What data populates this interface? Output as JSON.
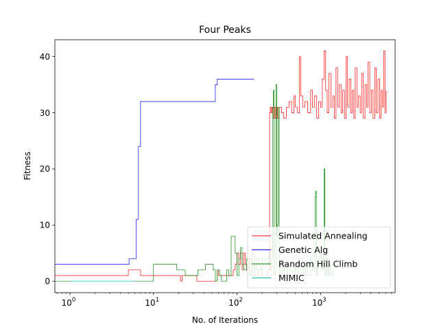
{
  "chart_data": {
    "type": "line",
    "title": "Four Peaks",
    "xlabel": "No. of Iterations",
    "ylabel": "Fitness",
    "xscale": "log",
    "xlim": [
      0.66,
      7800
    ],
    "ylim": [
      -2.05,
      43
    ],
    "x_ticks": [
      {
        "value": 1,
        "base": "10",
        "exp": "0"
      },
      {
        "value": 10,
        "base": "10",
        "exp": "1"
      },
      {
        "value": 100,
        "base": "10",
        "exp": "2"
      },
      {
        "value": 1000,
        "base": "10",
        "exp": "3"
      }
    ],
    "y_ticks": [
      {
        "value": 0,
        "label": "0"
      },
      {
        "value": 10,
        "label": "10"
      },
      {
        "value": 20,
        "label": "20"
      },
      {
        "value": 30,
        "label": "30"
      },
      {
        "value": 40,
        "label": "40"
      }
    ],
    "grid": false,
    "legend": "lower-right",
    "series": [
      {
        "name": "Simulated Annealing",
        "color": "#ff0000",
        "points": [
          [
            0.66,
            1
          ],
          [
            4,
            1
          ],
          [
            5,
            2
          ],
          [
            6,
            2
          ],
          [
            7,
            1
          ],
          [
            20,
            1
          ],
          [
            21,
            0
          ],
          [
            22,
            1
          ],
          [
            30,
            1
          ],
          [
            33,
            0
          ],
          [
            55,
            0
          ],
          [
            58,
            2
          ],
          [
            60,
            1
          ],
          [
            80,
            1
          ],
          [
            90,
            2
          ],
          [
            95,
            3
          ],
          [
            100,
            5
          ],
          [
            105,
            3
          ],
          [
            110,
            5
          ],
          [
            115,
            2
          ],
          [
            120,
            5
          ],
          [
            125,
            3
          ],
          [
            130,
            2
          ],
          [
            140,
            4
          ],
          [
            150,
            3
          ],
          [
            160,
            1
          ],
          [
            180,
            2
          ],
          [
            200,
            1
          ],
          [
            220,
            1
          ],
          [
            230,
            2
          ],
          [
            245,
            30
          ],
          [
            250,
            31
          ],
          [
            255,
            30
          ],
          [
            262,
            31
          ],
          [
            268,
            29
          ],
          [
            275,
            31
          ],
          [
            285,
            29
          ],
          [
            295,
            31
          ],
          [
            305,
            29
          ],
          [
            320,
            31
          ],
          [
            340,
            30
          ],
          [
            360,
            29
          ],
          [
            390,
            31
          ],
          [
            420,
            32
          ],
          [
            450,
            30
          ],
          [
            480,
            33
          ],
          [
            500,
            31
          ],
          [
            530,
            30
          ],
          [
            560,
            40
          ],
          [
            580,
            33
          ],
          [
            610,
            31
          ],
          [
            650,
            32
          ],
          [
            700,
            30
          ],
          [
            760,
            34
          ],
          [
            800,
            31
          ],
          [
            850,
            33
          ],
          [
            900,
            29
          ],
          [
            950,
            32
          ],
          [
            1000,
            31
          ],
          [
            1050,
            36
          ],
          [
            1100,
            41
          ],
          [
            1150,
            34
          ],
          [
            1200,
            30
          ],
          [
            1260,
            37
          ],
          [
            1330,
            31
          ],
          [
            1400,
            33
          ],
          [
            1460,
            29
          ],
          [
            1530,
            38
          ],
          [
            1600,
            31
          ],
          [
            1680,
            35
          ],
          [
            1760,
            30
          ],
          [
            1840,
            34
          ],
          [
            1930,
            29
          ],
          [
            2020,
            40
          ],
          [
            2100,
            31
          ],
          [
            2200,
            36
          ],
          [
            2300,
            30
          ],
          [
            2400,
            34
          ],
          [
            2500,
            29
          ],
          [
            2600,
            38
          ],
          [
            2720,
            31
          ],
          [
            2850,
            33
          ],
          [
            2980,
            30
          ],
          [
            3100,
            37
          ],
          [
            3250,
            29
          ],
          [
            3400,
            35
          ],
          [
            3550,
            31
          ],
          [
            3700,
            39
          ],
          [
            3880,
            30
          ],
          [
            4050,
            34
          ],
          [
            4250,
            29
          ],
          [
            4450,
            38
          ],
          [
            4650,
            30
          ],
          [
            4860,
            36
          ],
          [
            5080,
            29
          ],
          [
            5300,
            34
          ],
          [
            5500,
            31
          ],
          [
            5700,
            41
          ],
          [
            5900,
            30
          ],
          [
            6100,
            34
          ]
        ]
      },
      {
        "name": "Genetic Alg",
        "color": "#0000ff",
        "points": [
          [
            0.66,
            3
          ],
          [
            4.1,
            3
          ],
          [
            5.1,
            4
          ],
          [
            5.8,
            4
          ],
          [
            6.2,
            11
          ],
          [
            6.6,
            24
          ],
          [
            7,
            32
          ],
          [
            52,
            32
          ],
          [
            55,
            35
          ],
          [
            58,
            36
          ],
          [
            160,
            36
          ]
        ]
      },
      {
        "name": "Random Hill Climb",
        "color": "#008000",
        "points": [
          [
            0.66,
            0
          ],
          [
            9,
            0
          ],
          [
            10,
            3
          ],
          [
            11,
            3
          ],
          [
            15,
            3
          ],
          [
            18,
            3
          ],
          [
            19,
            2
          ],
          [
            21,
            2
          ],
          [
            24,
            1
          ],
          [
            33,
            1
          ],
          [
            34,
            2
          ],
          [
            36,
            2
          ],
          [
            40,
            2
          ],
          [
            42,
            3
          ],
          [
            44,
            3
          ],
          [
            52,
            2
          ],
          [
            55,
            0
          ],
          [
            58,
            2
          ],
          [
            62,
            1
          ],
          [
            65,
            0
          ],
          [
            70,
            0
          ],
          [
            75,
            2
          ],
          [
            80,
            1
          ],
          [
            85,
            8
          ],
          [
            90,
            8
          ],
          [
            95,
            5
          ],
          [
            100,
            1
          ],
          [
            105,
            4
          ],
          [
            110,
            6
          ],
          [
            115,
            3
          ],
          [
            120,
            2
          ],
          [
            130,
            4
          ],
          [
            140,
            1
          ],
          [
            150,
            5
          ],
          [
            160,
            2
          ],
          [
            170,
            4
          ],
          [
            180,
            3
          ],
          [
            190,
            2
          ],
          [
            200,
            4
          ],
          [
            220,
            3
          ],
          [
            240,
            5
          ],
          [
            250,
            2
          ],
          [
            260,
            4
          ],
          [
            268,
            31
          ],
          [
            272,
            34
          ],
          [
            278,
            1
          ],
          [
            285,
            2
          ],
          [
            292,
            35
          ],
          [
            298,
            8
          ],
          [
            305,
            10
          ],
          [
            312,
            31
          ],
          [
            320,
            1
          ],
          [
            335,
            2
          ],
          [
            350,
            1
          ],
          [
            370,
            3
          ],
          [
            400,
            1
          ],
          [
            430,
            2
          ],
          [
            460,
            1
          ],
          [
            500,
            3
          ],
          [
            540,
            1
          ],
          [
            580,
            2
          ],
          [
            620,
            1
          ],
          [
            660,
            3
          ],
          [
            700,
            1
          ],
          [
            760,
            4
          ],
          [
            800,
            2
          ],
          [
            840,
            5
          ],
          [
            860,
            15
          ],
          [
            870,
            16
          ],
          [
            890,
            1
          ],
          [
            930,
            3
          ],
          [
            980,
            5
          ],
          [
            1020,
            2
          ],
          [
            1080,
            6
          ],
          [
            1100,
            20
          ],
          [
            1120,
            1
          ],
          [
            1160,
            4
          ],
          [
            1200,
            1
          ],
          [
            1260,
            3
          ],
          [
            1320,
            1
          ],
          [
            1400,
            2
          ]
        ]
      },
      {
        "name": "MIMIC",
        "color": "#00bfbf",
        "points": [
          [
            1,
            0
          ],
          [
            4,
            0
          ],
          [
            6,
            0
          ]
        ]
      }
    ]
  }
}
